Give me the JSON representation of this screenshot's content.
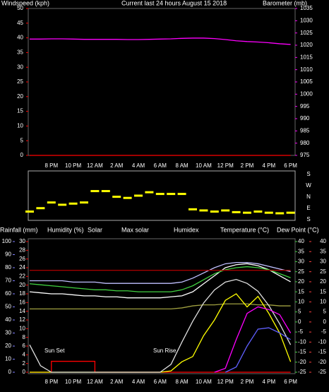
{
  "chart_data": [
    {
      "type": "line",
      "title": "Current last 24 hours August 15 2018",
      "ylabel": "Windspeed (kph)",
      "y2label": "Barometer (mb)",
      "categories": [
        null,
        null,
        "8 PM",
        null,
        "10 PM",
        null,
        "12 AM",
        null,
        "2 AM",
        null,
        "4 AM",
        null,
        "6 AM",
        null,
        "8 AM",
        null,
        "10 AM",
        null,
        "12 PM",
        null,
        "2 PM",
        null,
        "4 PM",
        null,
        "6 PM"
      ],
      "ylim": [
        0,
        50
      ],
      "yticks": [
        0,
        5,
        10,
        15,
        20,
        25,
        30,
        35,
        40,
        45,
        50
      ],
      "y2lim": [
        975,
        1035
      ],
      "y2ticks": [
        975,
        980,
        985,
        990,
        995,
        1000,
        1005,
        1010,
        1015,
        1020,
        1025,
        1030,
        1035
      ],
      "series": [
        {
          "color": "#ff0000",
          "values": [
            0,
            0,
            0,
            0,
            0,
            0,
            0,
            0,
            0,
            0,
            0,
            0,
            0,
            0,
            0,
            0,
            0,
            0,
            0,
            0,
            0,
            0,
            0,
            0,
            0
          ]
        },
        {
          "color": "#ff00ff",
          "axis": "y2",
          "values": [
            1022.5,
            1022.5,
            1022.6,
            1022.6,
            1022.5,
            1022.4,
            1022.4,
            1022.4,
            1022.4,
            1022.3,
            1022.3,
            1022.4,
            1022.5,
            1022.6,
            1022.8,
            1022.9,
            1022.9,
            1022.7,
            1022.3,
            1021.8,
            1021.5,
            1021.3,
            1021,
            1020.6,
            1020.3
          ]
        }
      ]
    },
    {
      "type": "scatter",
      "categories": [
        null,
        null,
        null,
        null,
        null,
        null,
        null,
        null,
        null,
        null,
        null,
        null,
        null,
        null,
        null,
        null,
        null,
        null,
        null,
        null,
        null,
        null,
        null,
        null,
        null
      ],
      "ylim": [
        -180,
        180
      ],
      "yticks": [
        {
          "value": 180,
          "label": "S"
        },
        {
          "value": 90,
          "label": "E"
        },
        {
          "value": 0,
          "label": "N"
        },
        {
          "value": -90,
          "label": "W"
        },
        {
          "value": -180,
          "label": "S"
        }
      ],
      "color": "#ffff00",
      "values": [
        140,
        110,
        60,
        80,
        70,
        60,
        -40,
        -40,
        10,
        20,
        0,
        -30,
        -15,
        -15,
        -15,
        120,
        130,
        140,
        130,
        145,
        150,
        140,
        150,
        155,
        150
      ]
    },
    {
      "type": "line",
      "categories": [
        null,
        null,
        "8 PM",
        null,
        "10 PM",
        null,
        "12 AM",
        null,
        "2 AM",
        null,
        "4 AM",
        null,
        "6 AM",
        null,
        "8 AM",
        null,
        "10 AM",
        null,
        "12 PM",
        null,
        "2 PM",
        null,
        "4 PM",
        null,
        "6 PM"
      ],
      "ylim": [
        0,
        100
      ],
      "yticks": [
        0,
        10,
        20,
        30,
        40,
        50,
        60,
        70,
        80,
        90,
        100
      ],
      "y2lim": [
        -25,
        40
      ],
      "y2ticks": [
        -25,
        -20,
        -15,
        -10,
        -5,
        0,
        5,
        10,
        15,
        20,
        25,
        30,
        35,
        40
      ],
      "annotations": [
        "Sun Set",
        "Sun Rise"
      ],
      "series": [
        {
          "name": "Humidity (%)",
          "color": "#c0c0ff",
          "values": [
            70,
            70,
            70,
            70,
            69,
            69,
            69,
            68,
            68,
            68,
            68,
            68,
            68,
            68,
            69,
            72,
            76,
            80,
            83,
            84,
            84,
            83,
            81,
            79,
            77
          ]
        },
        {
          "name": "Solar",
          "color": "#ffff00",
          "values": [
            0,
            0,
            0,
            0,
            0,
            0,
            0,
            0,
            0,
            0,
            0,
            0,
            0,
            1,
            8,
            12,
            28,
            40,
            55,
            60,
            50,
            58,
            45,
            30,
            8
          ]
        },
        {
          "name": "Max solar",
          "color": "#e0e0e0",
          "values": [
            21,
            5,
            0,
            0,
            0,
            0,
            0,
            0,
            0,
            0,
            0,
            0,
            0,
            6,
            23,
            39,
            53,
            63,
            69,
            71,
            68,
            62,
            51,
            37,
            21
          ]
        },
        {
          "name": "Humidex",
          "color": "#ffffff",
          "axis": "y2",
          "values": [
            15,
            14.5,
            14,
            14,
            13.5,
            13,
            13,
            12.5,
            12.5,
            12,
            12,
            12,
            12,
            12.5,
            13,
            15,
            19,
            23,
            27,
            28.5,
            29,
            28,
            26,
            23,
            20
          ]
        },
        {
          "name": "Temperature (°C)",
          "color": "#40d040",
          "axis": "y2",
          "values": [
            19,
            18.5,
            18,
            17.5,
            17,
            16.5,
            16,
            16,
            15.5,
            15.5,
            15,
            15,
            15,
            15,
            16,
            18,
            21,
            24,
            26,
            27,
            27.5,
            27,
            26,
            24,
            22
          ]
        },
        {
          "color": "#ff00ff",
          "values": [
            null,
            null,
            null,
            null,
            null,
            null,
            null,
            null,
            null,
            null,
            null,
            null,
            null,
            null,
            null,
            null,
            null,
            0,
            3,
            25,
            45,
            50,
            48,
            44,
            30
          ]
        },
        {
          "color": "#6060ff",
          "values": [
            null,
            null,
            null,
            null,
            null,
            null,
            null,
            null,
            null,
            null,
            null,
            null,
            null,
            null,
            null,
            null,
            null,
            null,
            0,
            4,
            20,
            33,
            34,
            30,
            25
          ]
        },
        {
          "color": "#a00000",
          "values": [
            78,
            78,
            78,
            78,
            78,
            78,
            78,
            78,
            78,
            78,
            78,
            78,
            78,
            78,
            78,
            78,
            78,
            78,
            78,
            78,
            78,
            78,
            78,
            78,
            78
          ]
        }
      ]
    },
    {
      "type": "line",
      "step": true,
      "categories": [
        null,
        null,
        null,
        null,
        null,
        null,
        null,
        null,
        null,
        null,
        null,
        null,
        null,
        null,
        null,
        null,
        null,
        null,
        null,
        null,
        null,
        null,
        null,
        null,
        null
      ],
      "ylim": [
        0,
        30
      ],
      "yticks": [
        0,
        2,
        4,
        6,
        8,
        10,
        12,
        14,
        16,
        18,
        20,
        22,
        24,
        26,
        28,
        30
      ],
      "series": [
        {
          "name": "Rainfall (mm)",
          "color": "#ff0000",
          "values": [
            0,
            0,
            2.5,
            2.5,
            2.5,
            2.5,
            0,
            0,
            0,
            0,
            0,
            0,
            0,
            0,
            0,
            0,
            0,
            0,
            0,
            0,
            0,
            0,
            0,
            0,
            0
          ]
        }
      ]
    },
    {
      "type": "line",
      "categories": [
        null,
        null,
        null,
        null,
        null,
        null,
        null,
        null,
        null,
        null,
        null,
        null,
        null,
        null,
        null,
        null,
        null,
        null,
        null,
        null,
        null,
        null,
        null,
        null,
        null
      ],
      "ylim": [
        -25,
        40
      ],
      "yticks": [
        -25,
        -20,
        -15,
        -10,
        -5,
        0,
        5,
        10,
        15,
        20,
        25,
        30,
        35,
        40
      ],
      "series": [
        {
          "name": "Dew Point (°C)",
          "color": "#a0a040",
          "values": [
            6.5,
            6.5,
            6.5,
            6.5,
            6.5,
            6.5,
            6.5,
            6.5,
            6.5,
            6.5,
            6.5,
            6.5,
            6.5,
            6.5,
            7,
            8,
            8.5,
            8.5,
            9,
            9,
            9,
            8.5,
            8.5,
            8,
            8
          ]
        }
      ]
    }
  ]
}
